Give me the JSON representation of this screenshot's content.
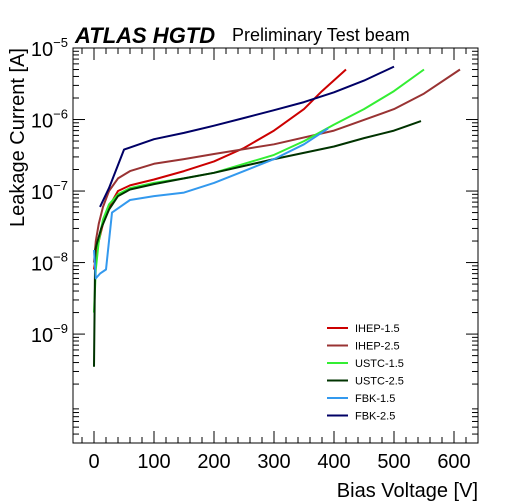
{
  "chart_data": {
    "type": "line",
    "title_bold": "ATLAS HGTD",
    "title_rest": "Preliminary Test beam",
    "xlabel": "Bias Voltage [V]",
    "ylabel": "Leakage Current [A]",
    "xlim": [
      -35,
      640
    ],
    "ylim": [
      3e-11,
      1e-05
    ],
    "yscale": "log",
    "x_ticks": [
      0,
      100,
      200,
      300,
      400,
      500,
      600
    ],
    "x_tick_labels": [
      "0",
      "100",
      "200",
      "300",
      "400",
      "500",
      "600"
    ],
    "y_ticks": [
      1e-09,
      1e-08,
      1e-07,
      1e-06,
      1e-05
    ],
    "y_tick_bases": [
      "10",
      "10",
      "10",
      "10",
      "10"
    ],
    "y_tick_exponents": [
      "−9",
      "−8",
      "−7",
      "−6",
      "−5"
    ],
    "legend_position": "bottom-right",
    "grid": false,
    "series": [
      {
        "name": "IHEP-1.5",
        "color": "#cc0000",
        "x": [
          0,
          3,
          8,
          15,
          25,
          40,
          60,
          100,
          150,
          200,
          250,
          300,
          350,
          380,
          420
        ],
        "y": [
          8e-09,
          1.2e-08,
          2e-08,
          3.5e-08,
          6e-08,
          1e-07,
          1.2e-07,
          1.45e-07,
          1.9e-07,
          2.6e-07,
          4e-07,
          7e-07,
          1.4e-06,
          2.5e-06,
          5e-06
        ]
      },
      {
        "name": "IHEP-2.5",
        "color": "#993333",
        "x": [
          0,
          3,
          8,
          15,
          25,
          40,
          60,
          100,
          150,
          200,
          300,
          400,
          500,
          550,
          610
        ],
        "y": [
          1e-08,
          2e-08,
          3.5e-08,
          6e-08,
          1e-07,
          1.5e-07,
          1.9e-07,
          2.4e-07,
          2.8e-07,
          3.3e-07,
          4.5e-07,
          7e-07,
          1.4e-06,
          2.3e-06,
          5e-06
        ]
      },
      {
        "name": "USTC-1.5",
        "color": "#33ee33",
        "x": [
          0,
          3,
          8,
          15,
          25,
          40,
          60,
          100,
          150,
          200,
          300,
          350,
          400,
          450,
          500,
          550
        ],
        "y": [
          2e-09,
          8e-09,
          2e-08,
          4e-08,
          6.5e-08,
          9e-08,
          1.1e-07,
          1.3e-07,
          1.5e-07,
          1.8e-07,
          3.2e-07,
          5e-07,
          8.5e-07,
          1.4e-06,
          2.5e-06,
          5e-06
        ]
      },
      {
        "name": "USTC-2.5",
        "color": "#003300",
        "x": [
          0,
          2,
          6,
          12,
          25,
          40,
          60,
          100,
          150,
          200,
          300,
          400,
          450,
          500,
          545
        ],
        "y": [
          3.5e-10,
          1.5e-08,
          2e-08,
          3e-08,
          5.5e-08,
          8.5e-08,
          1.05e-07,
          1.25e-07,
          1.5e-07,
          1.8e-07,
          2.8e-07,
          4.2e-07,
          5.5e-07,
          7e-07,
          9.5e-07
        ]
      },
      {
        "name": "FBK-1.5",
        "color": "#3399ee",
        "x": [
          0,
          3,
          10,
          20,
          30,
          60,
          100,
          150,
          200,
          250,
          300,
          350,
          390
        ],
        "y": [
          1.5e-08,
          6e-09,
          7e-09,
          8e-09,
          5e-08,
          7.5e-08,
          8.5e-08,
          9.5e-08,
          1.3e-07,
          1.9e-07,
          2.8e-07,
          4.5e-07,
          7.5e-07
        ]
      },
      {
        "name": "FBK-2.5",
        "color": "#000066",
        "x": [
          10,
          25,
          50,
          100,
          150,
          200,
          250,
          300,
          350,
          400,
          450,
          500
        ],
        "y": [
          6e-08,
          1.1e-07,
          3.8e-07,
          5.3e-07,
          6.5e-07,
          8.2e-07,
          1.05e-06,
          1.35e-06,
          1.75e-06,
          2.4e-06,
          3.5e-06,
          5.5e-06
        ]
      }
    ]
  }
}
